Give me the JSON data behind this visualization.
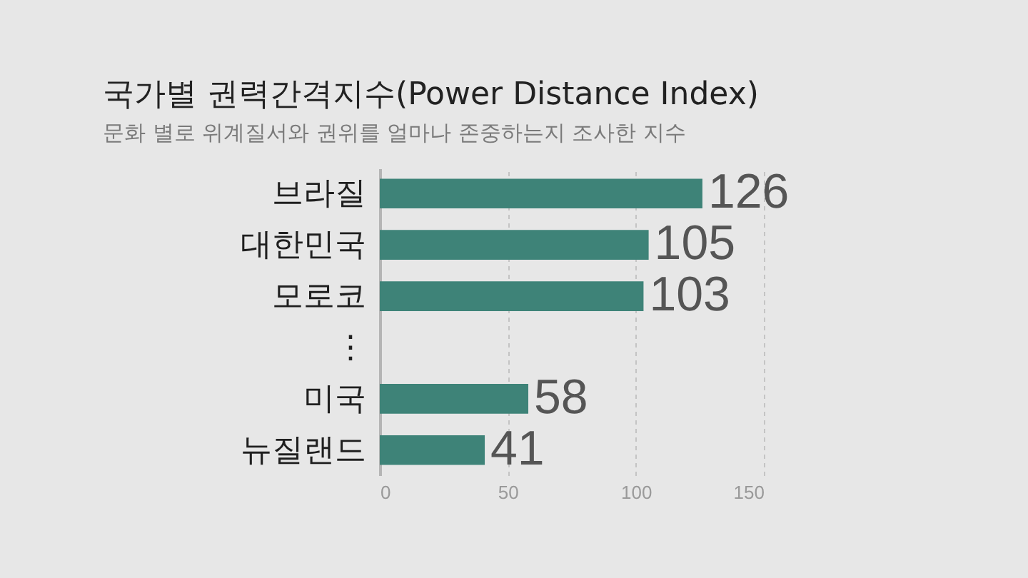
{
  "chart_data": {
    "type": "bar",
    "orientation": "horizontal",
    "title": "국가별 권력간격지수(Power Distance Index)",
    "subtitle": "문화 별로 위계질서와 권위를 얼마나 존중하는지 조사한 지수",
    "categories": [
      "브라질",
      "대한민국",
      "모로코",
      "⋮",
      "미국",
      "뉴질랜드"
    ],
    "values": [
      126,
      105,
      103,
      null,
      58,
      41
    ],
    "color": "#3e8378",
    "xlim": [
      0,
      150
    ],
    "xticks": [
      0,
      50,
      100,
      150
    ],
    "grid": "x",
    "data_labels": true
  }
}
